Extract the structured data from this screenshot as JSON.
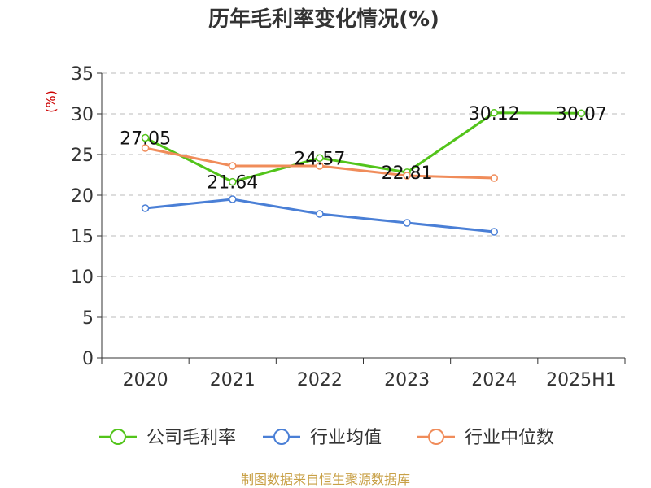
{
  "chart_data": {
    "type": "line",
    "title": "历年毛利率变化情况(%)",
    "ylabel": "(%)",
    "xlabel": "",
    "categories": [
      "2020",
      "2021",
      "2022",
      "2023",
      "2024",
      "2025H1"
    ],
    "ylim": [
      0,
      35
    ],
    "yticks": [
      0,
      5,
      10,
      15,
      20,
      25,
      30,
      35
    ],
    "grid": true,
    "legend_position": "bottom",
    "series": [
      {
        "name": "公司毛利率",
        "color": "#52c41a",
        "values": [
          27.05,
          21.64,
          24.57,
          22.81,
          30.12,
          30.07
        ],
        "labels": [
          "27.05",
          "21.64",
          "24.57",
          "22.81",
          "30.12",
          "30.07"
        ]
      },
      {
        "name": "行业均值",
        "color": "#4a7fd6",
        "values": [
          18.4,
          19.5,
          17.7,
          16.6,
          15.5,
          null
        ]
      },
      {
        "name": "行业中位数",
        "color": "#f08c5a",
        "values": [
          25.8,
          23.6,
          23.6,
          22.4,
          22.1,
          null
        ]
      }
    ]
  },
  "source": "制图数据来自恒生聚源数据库",
  "colors": {
    "title": "#333333",
    "axis": "#333333",
    "grid": "#bbbbbb",
    "ylabel": "#cc0000",
    "source": "#c8a046"
  }
}
